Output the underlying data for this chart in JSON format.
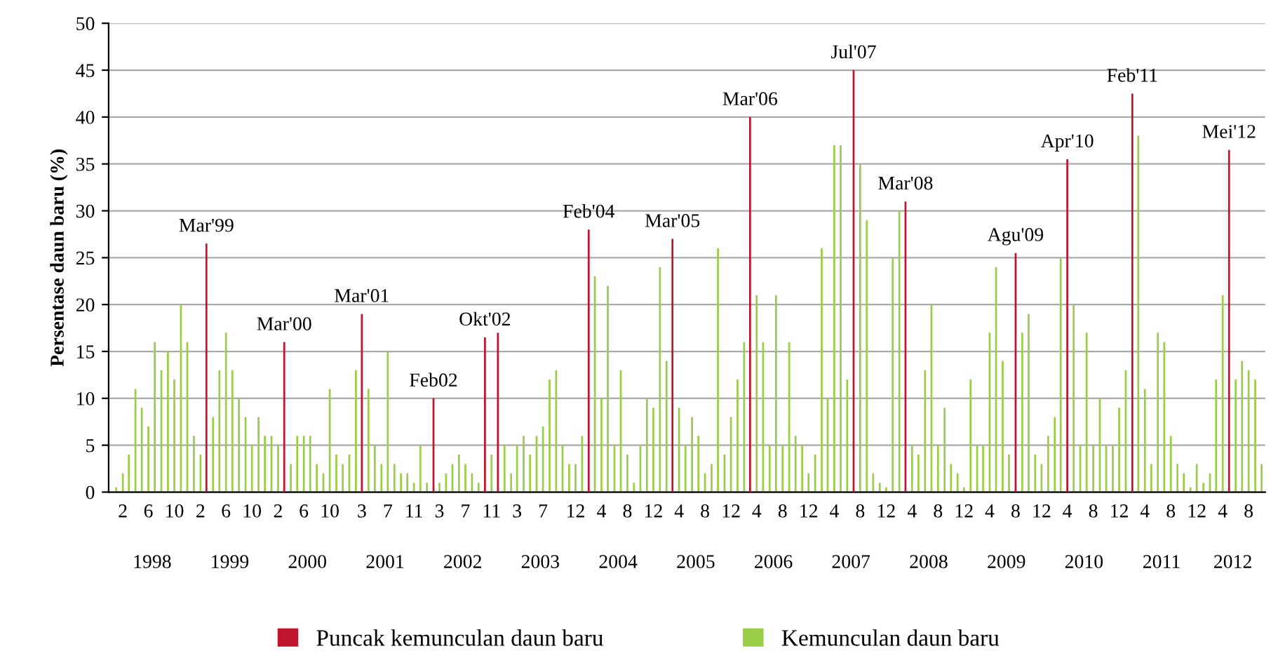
{
  "chart_data": {
    "type": "bar",
    "ylabel": "Persentase daun baru (%)",
    "ylim": [
      0,
      50
    ],
    "yticks": [
      0,
      5,
      10,
      15,
      20,
      25,
      30,
      35,
      40,
      45,
      50
    ],
    "grid": "y",
    "legend": "bottom",
    "xlim": [
      "1997-12-10",
      "2012-11-01"
    ],
    "xticks": [
      {
        "value": "1998-02",
        "label": "2"
      },
      {
        "value": "1998-06",
        "label": "6"
      },
      {
        "value": "1998-10",
        "label": "10"
      },
      {
        "value": "1999-02",
        "label": "2"
      },
      {
        "value": "1999-06",
        "label": "6"
      },
      {
        "value": "1999-10",
        "label": "10"
      },
      {
        "value": "2000-02",
        "label": "2"
      },
      {
        "value": "2000-06",
        "label": "6"
      },
      {
        "value": "2000-10",
        "label": "10"
      },
      {
        "value": "2001-03",
        "label": "3"
      },
      {
        "value": "2001-07",
        "label": "7"
      },
      {
        "value": "2001-11",
        "label": "11"
      },
      {
        "value": "2002-03",
        "label": "3"
      },
      {
        "value": "2002-07",
        "label": "7"
      },
      {
        "value": "2002-11",
        "label": "11"
      },
      {
        "value": "2003-03",
        "label": "3"
      },
      {
        "value": "2003-07",
        "label": "7"
      },
      {
        "value": "2003-12",
        "label": "12"
      },
      {
        "value": "2004-04",
        "label": "4"
      },
      {
        "value": "2004-08",
        "label": "8"
      },
      {
        "value": "2004-12",
        "label": "12"
      },
      {
        "value": "2005-04",
        "label": "4"
      },
      {
        "value": "2005-08",
        "label": "8"
      },
      {
        "value": "2005-12",
        "label": "12"
      },
      {
        "value": "2006-04",
        "label": "4"
      },
      {
        "value": "2006-08",
        "label": "8"
      },
      {
        "value": "2006-12",
        "label": "12"
      },
      {
        "value": "2007-04",
        "label": "4"
      },
      {
        "value": "2007-08",
        "label": "8"
      },
      {
        "value": "2007-12",
        "label": "12"
      },
      {
        "value": "2008-04",
        "label": "4"
      },
      {
        "value": "2008-08",
        "label": "8"
      },
      {
        "value": "2008-12",
        "label": "12"
      },
      {
        "value": "2009-04",
        "label": "4"
      },
      {
        "value": "2009-08",
        "label": "8"
      },
      {
        "value": "2009-12",
        "label": "12"
      },
      {
        "value": "2010-04",
        "label": "4"
      },
      {
        "value": "2010-08",
        "label": "8"
      },
      {
        "value": "2010-12",
        "label": "12"
      },
      {
        "value": "2011-04",
        "label": "4"
      },
      {
        "value": "2011-08",
        "label": "8"
      },
      {
        "value": "2011-12",
        "label": "12"
      },
      {
        "value": "2012-04",
        "label": "4"
      },
      {
        "value": "2012-08",
        "label": "8"
      }
    ],
    "series": [
      {
        "name": "Puncak kemunculan daun baru",
        "color": "#c0142e",
        "x": [
          "1999-03",
          "2000-03",
          "2001-03",
          "2002-02",
          "2002-10",
          "2002-12",
          "2004-02",
          "2005-03",
          "2006-03",
          "2007-07",
          "2008-03",
          "2009-08",
          "2010-04",
          "2011-02",
          "2012-05"
        ],
        "values": [
          26.5,
          16,
          19,
          10,
          16.5,
          17,
          28,
          27,
          40,
          45,
          31,
          25.5,
          35.5,
          42.5,
          36.5
        ]
      },
      {
        "name": "Kemunculan daun baru",
        "color": "#9acd48",
        "x": [
          "1998-01",
          "1998-02",
          "1998-03",
          "1998-04",
          "1998-05",
          "1998-06",
          "1998-07",
          "1998-08",
          "1998-09",
          "1998-10",
          "1998-11",
          "1998-12",
          "1999-01",
          "1999-02",
          "1999-04",
          "1999-05",
          "1999-06",
          "1999-07",
          "1999-08",
          "1999-09",
          "1999-10",
          "1999-11",
          "1999-12",
          "2000-01",
          "2000-02",
          "2000-04",
          "2000-05",
          "2000-06",
          "2000-07",
          "2000-08",
          "2000-09",
          "2000-10",
          "2000-11",
          "2000-12",
          "2001-01",
          "2001-02",
          "2001-04",
          "2001-05",
          "2001-06",
          "2001-07",
          "2001-08",
          "2001-09",
          "2001-10",
          "2001-11",
          "2001-12",
          "2002-01",
          "2002-03",
          "2002-04",
          "2002-05",
          "2002-06",
          "2002-07",
          "2002-08",
          "2002-09",
          "2002-11",
          "2003-01",
          "2003-02",
          "2003-03",
          "2003-04",
          "2003-05",
          "2003-06",
          "2003-07",
          "2003-08",
          "2003-09",
          "2003-10",
          "2003-11",
          "2003-12",
          "2004-01",
          "2004-03",
          "2004-04",
          "2004-05",
          "2004-06",
          "2004-07",
          "2004-08",
          "2004-09",
          "2004-10",
          "2004-11",
          "2004-12",
          "2005-01",
          "2005-02",
          "2005-04",
          "2005-05",
          "2005-06",
          "2005-07",
          "2005-08",
          "2005-09",
          "2005-10",
          "2005-11",
          "2005-12",
          "2006-01",
          "2006-02",
          "2006-04",
          "2006-05",
          "2006-06",
          "2006-07",
          "2006-08",
          "2006-09",
          "2006-10",
          "2006-11",
          "2006-12",
          "2007-01",
          "2007-02",
          "2007-03",
          "2007-04",
          "2007-05",
          "2007-06",
          "2007-08",
          "2007-09",
          "2007-10",
          "2007-11",
          "2007-12",
          "2008-01",
          "2008-02",
          "2008-04",
          "2008-05",
          "2008-06",
          "2008-07",
          "2008-08",
          "2008-09",
          "2008-10",
          "2008-11",
          "2008-12",
          "2009-01",
          "2009-02",
          "2009-03",
          "2009-04",
          "2009-05",
          "2009-06",
          "2009-07",
          "2009-09",
          "2009-10",
          "2009-11",
          "2009-12",
          "2010-01",
          "2010-02",
          "2010-03",
          "2010-05",
          "2010-06",
          "2010-07",
          "2010-08",
          "2010-09",
          "2010-10",
          "2010-11",
          "2010-12",
          "2011-01",
          "2011-03",
          "2011-04",
          "2011-05",
          "2011-06",
          "2011-07",
          "2011-08",
          "2011-09",
          "2011-10",
          "2011-11",
          "2011-12",
          "2012-01",
          "2012-02",
          "2012-03",
          "2012-04",
          "2012-06",
          "2012-07",
          "2012-08",
          "2012-09",
          "2012-10"
        ],
        "values": [
          0.5,
          2,
          4,
          11,
          9,
          7,
          16,
          13,
          15,
          12,
          20,
          16,
          6,
          4,
          8,
          13,
          17,
          13,
          10,
          8,
          5,
          8,
          6,
          6,
          5,
          3,
          6,
          6,
          6,
          3,
          2,
          11,
          4,
          3,
          4,
          13,
          11,
          5,
          3,
          15,
          3,
          2,
          2,
          1,
          5,
          1,
          1,
          2,
          3,
          4,
          3,
          2,
          1,
          4,
          5,
          2,
          5,
          6,
          4,
          6,
          7,
          12,
          13,
          5,
          3,
          3,
          6,
          23,
          10,
          22,
          5,
          13,
          4,
          1,
          5,
          10,
          9,
          24,
          14,
          9,
          5,
          8,
          6,
          2,
          3,
          26,
          4,
          8,
          12,
          16,
          21,
          16,
          5,
          21,
          5,
          16,
          6,
          5,
          2,
          4,
          26,
          10,
          37,
          37,
          12,
          35,
          29,
          2,
          1,
          0.5,
          25,
          30,
          5,
          4,
          13,
          20,
          5,
          9,
          3,
          2,
          0.5,
          12,
          5,
          5,
          17,
          24,
          14,
          4,
          17,
          19,
          4,
          3,
          6,
          8,
          25,
          20,
          5,
          17,
          5,
          10,
          5,
          5,
          9,
          13,
          38,
          11,
          3,
          17,
          16,
          6,
          3,
          2,
          0.5,
          3,
          1,
          2,
          12,
          21,
          12,
          14,
          13,
          12,
          3
        ]
      }
    ],
    "annotations": [
      {
        "text": "Mar'99",
        "x": "1999-03",
        "y": 26.5
      },
      {
        "text": "Mar'00",
        "x": "2000-03",
        "y": 16
      },
      {
        "text": "Mar'01",
        "x": "2001-03",
        "y": 19
      },
      {
        "text": "Feb02",
        "x": "2002-02",
        "y": 10
      },
      {
        "text": "Okt'02",
        "x": "2002-10",
        "y": 16.5
      },
      {
        "text": "Feb'04",
        "x": "2004-02",
        "y": 28
      },
      {
        "text": "Mar'05",
        "x": "2005-03",
        "y": 27
      },
      {
        "text": "Mar'06",
        "x": "2006-03",
        "y": 40
      },
      {
        "text": "Jul'07",
        "x": "2007-07",
        "y": 45
      },
      {
        "text": "Mar'08",
        "x": "2008-03",
        "y": 31
      },
      {
        "text": "Agu'09",
        "x": "2009-08",
        "y": 25.5
      },
      {
        "text": "Apr'10",
        "x": "2010-04",
        "y": 35.5
      },
      {
        "text": "Feb'11",
        "x": "2011-02",
        "y": 42.5
      },
      {
        "text": "Mei'12",
        "x": "2012-05",
        "y": 36.5
      },
      "1998",
      "1999",
      "2000",
      "2001",
      "2002",
      "2003",
      "2004",
      "2005",
      "2006",
      "2007",
      "2008",
      "2009",
      "2010",
      "2011",
      "2012"
    ]
  }
}
